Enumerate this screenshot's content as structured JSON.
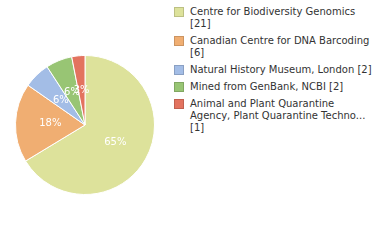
{
  "chart_data": {
    "type": "pie",
    "categories": [
      "Centre for Biodiversity Genomics [21]",
      "Canadian Centre for DNA Barcoding [6]",
      "Natural History Museum, London [2]",
      "Mined from GenBank, NCBI [2]",
      "Animal and Plant Quarantine Agency, Plant Quarantine Techno... [1]"
    ],
    "values": [
      65,
      18,
      6,
      6,
      3
    ],
    "value_labels": [
      "65%",
      "18%",
      "6%",
      "6%",
      "3%"
    ],
    "colors": [
      "#dde29b",
      "#f0ae72",
      "#a3bde6",
      "#98c574",
      "#e3735f"
    ],
    "data_labels": true,
    "legend": "right"
  }
}
